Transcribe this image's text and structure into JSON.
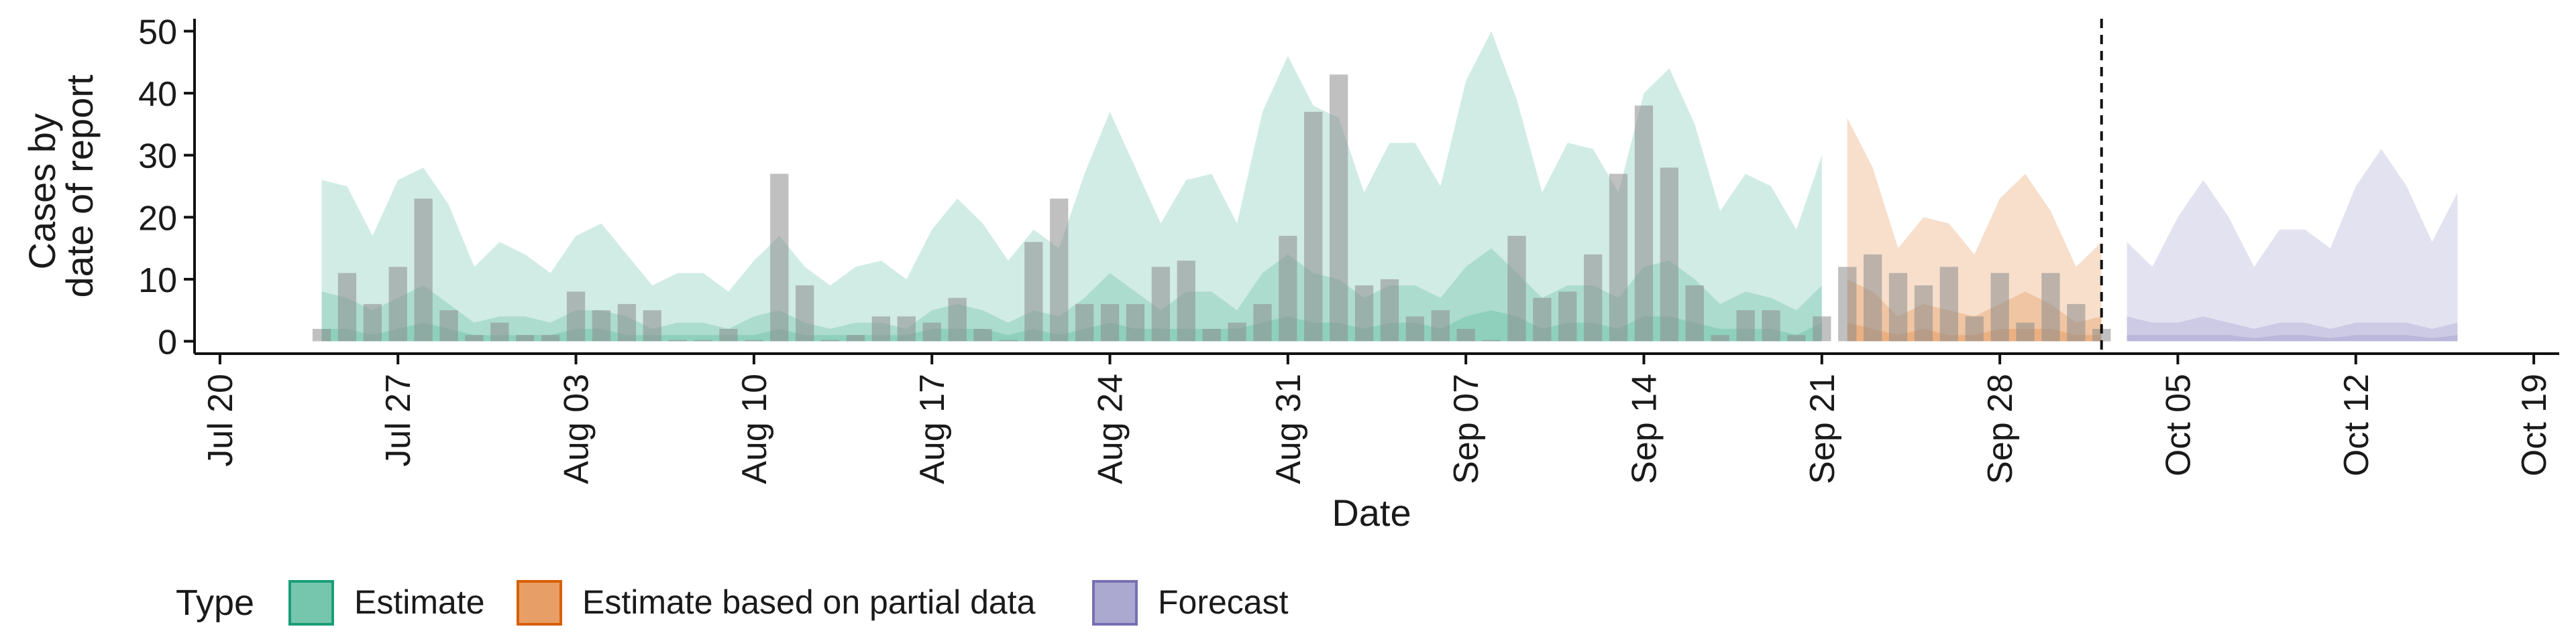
{
  "chart_data": {
    "type": "area",
    "xlabel": "Date",
    "ylabel_lines": [
      "Cases by",
      "date of report"
    ],
    "x_axis": {
      "type": "date",
      "range": [
        "2020-07-19",
        "2020-10-20"
      ],
      "ticks": [
        "2020-07-20",
        "2020-07-27",
        "2020-08-03",
        "2020-08-10",
        "2020-08-17",
        "2020-08-24",
        "2020-08-31",
        "2020-09-07",
        "2020-09-14",
        "2020-09-21",
        "2020-09-28",
        "2020-10-05",
        "2020-10-12",
        "2020-10-19"
      ],
      "tick_labels": [
        "Jul 20",
        "Jul 27",
        "Aug 03",
        "Aug 10",
        "Aug 17",
        "Aug 24",
        "Aug 31",
        "Sep 07",
        "Sep 14",
        "Sep 21",
        "Sep 28",
        "Oct 05",
        "Oct 12",
        "Oct 19"
      ]
    },
    "y_axis": {
      "ylim": [
        -2,
        52
      ],
      "ticks": [
        0,
        10,
        20,
        30,
        40,
        50
      ],
      "tick_labels": [
        "0",
        "10",
        "20",
        "30",
        "40",
        "50"
      ]
    },
    "grid": false,
    "vline_date": "2020-10-02",
    "observed_cases": {
      "dates": [
        "2020-07-24",
        "2020-07-25",
        "2020-07-26",
        "2020-07-27",
        "2020-07-28",
        "2020-07-29",
        "2020-07-30",
        "2020-07-31",
        "2020-08-01",
        "2020-08-02",
        "2020-08-03",
        "2020-08-04",
        "2020-08-05",
        "2020-08-06",
        "2020-08-07",
        "2020-08-08",
        "2020-08-09",
        "2020-08-10",
        "2020-08-11",
        "2020-08-12",
        "2020-08-13",
        "2020-08-14",
        "2020-08-15",
        "2020-08-16",
        "2020-08-17",
        "2020-08-18",
        "2020-08-19",
        "2020-08-20",
        "2020-08-21",
        "2020-08-22",
        "2020-08-23",
        "2020-08-24",
        "2020-08-25",
        "2020-08-26",
        "2020-08-27",
        "2020-08-28",
        "2020-08-29",
        "2020-08-30",
        "2020-08-31",
        "2020-09-01",
        "2020-09-02",
        "2020-09-03",
        "2020-09-04",
        "2020-09-05",
        "2020-09-06",
        "2020-09-07",
        "2020-09-08",
        "2020-09-09",
        "2020-09-10",
        "2020-09-11",
        "2020-09-12",
        "2020-09-13",
        "2020-09-14",
        "2020-09-15",
        "2020-09-16",
        "2020-09-17",
        "2020-09-18",
        "2020-09-19",
        "2020-09-20",
        "2020-09-21",
        "2020-09-22",
        "2020-09-23",
        "2020-09-24",
        "2020-09-25",
        "2020-09-26",
        "2020-09-27",
        "2020-09-28",
        "2020-09-29",
        "2020-09-30",
        "2020-10-01",
        "2020-10-02"
      ],
      "values": [
        2,
        11,
        6,
        12,
        23,
        5,
        1,
        3,
        1,
        1,
        8,
        5,
        6,
        5,
        0,
        0,
        2,
        0,
        27,
        9,
        0,
        1,
        4,
        4,
        3,
        7,
        2,
        0,
        16,
        23,
        6,
        6,
        6,
        12,
        13,
        2,
        3,
        6,
        17,
        37,
        43,
        9,
        10,
        4,
        5,
        2,
        0,
        17,
        7,
        8,
        14,
        27,
        38,
        28,
        9,
        1,
        5,
        5,
        1,
        4,
        12,
        14,
        11,
        9,
        12,
        4,
        11,
        3,
        11,
        6,
        2
      ]
    },
    "series": [
      {
        "name": "Estimate",
        "color": "#1b9e77",
        "dates": [
          "2020-07-24",
          "2020-07-25",
          "2020-07-26",
          "2020-07-27",
          "2020-07-28",
          "2020-07-29",
          "2020-07-30",
          "2020-07-31",
          "2020-08-01",
          "2020-08-02",
          "2020-08-03",
          "2020-08-04",
          "2020-08-05",
          "2020-08-06",
          "2020-08-07",
          "2020-08-08",
          "2020-08-09",
          "2020-08-10",
          "2020-08-11",
          "2020-08-12",
          "2020-08-13",
          "2020-08-14",
          "2020-08-15",
          "2020-08-16",
          "2020-08-17",
          "2020-08-18",
          "2020-08-19",
          "2020-08-20",
          "2020-08-21",
          "2020-08-22",
          "2020-08-23",
          "2020-08-24",
          "2020-08-25",
          "2020-08-26",
          "2020-08-27",
          "2020-08-28",
          "2020-08-29",
          "2020-08-30",
          "2020-08-31",
          "2020-09-01",
          "2020-09-02",
          "2020-09-03",
          "2020-09-04",
          "2020-09-05",
          "2020-09-06",
          "2020-09-07",
          "2020-09-08",
          "2020-09-09",
          "2020-09-10",
          "2020-09-11",
          "2020-09-12",
          "2020-09-13",
          "2020-09-14",
          "2020-09-15",
          "2020-09-16",
          "2020-09-17",
          "2020-09-18",
          "2020-09-19",
          "2020-09-20",
          "2020-09-21"
        ],
        "upper90": [
          26,
          25,
          17,
          26,
          28,
          22,
          12,
          16,
          14,
          11,
          17,
          19,
          14,
          9,
          11,
          11,
          8,
          13,
          17,
          12,
          9,
          12,
          13,
          10,
          18,
          23,
          19,
          13,
          18,
          15,
          27,
          37,
          28,
          19,
          26,
          27,
          19,
          37,
          46,
          38,
          36,
          24,
          32,
          32,
          25,
          42,
          50,
          39,
          24,
          32,
          31,
          24,
          40,
          44,
          35,
          21,
          27,
          25,
          18,
          30
        ],
        "upper50": [
          8,
          7,
          5,
          7,
          9,
          6,
          3,
          4,
          4,
          3,
          5,
          5,
          4,
          2,
          3,
          3,
          2,
          4,
          5,
          3,
          2,
          3,
          3,
          2,
          5,
          6,
          5,
          3,
          5,
          4,
          7,
          11,
          8,
          5,
          8,
          8,
          5,
          11,
          14,
          11,
          10,
          7,
          9,
          9,
          7,
          12,
          15,
          11,
          7,
          9,
          9,
          7,
          12,
          13,
          10,
          6,
          8,
          7,
          5,
          9
        ],
        "upper20": [
          2,
          2,
          1,
          2,
          3,
          2,
          1,
          1,
          1,
          1,
          2,
          2,
          1,
          1,
          1,
          1,
          1,
          1,
          2,
          1,
          1,
          1,
          1,
          1,
          2,
          2,
          2,
          1,
          2,
          1,
          2,
          3,
          2,
          2,
          2,
          2,
          2,
          3,
          4,
          3,
          3,
          2,
          3,
          3,
          2,
          4,
          5,
          4,
          2,
          3,
          3,
          2,
          4,
          4,
          3,
          2,
          2,
          2,
          1,
          3
        ]
      },
      {
        "name": "Estimate based on partial data",
        "color": "#d95f02",
        "dates": [
          "2020-09-22",
          "2020-09-23",
          "2020-09-24",
          "2020-09-25",
          "2020-09-26",
          "2020-09-27",
          "2020-09-28",
          "2020-09-29",
          "2020-09-30",
          "2020-10-01",
          "2020-10-02"
        ],
        "upper90": [
          36,
          28,
          15,
          20,
          19,
          14,
          23,
          27,
          21,
          12,
          16
        ],
        "upper50": [
          10,
          8,
          4,
          6,
          5,
          4,
          6,
          8,
          6,
          3,
          4
        ],
        "upper20": [
          3,
          2,
          1,
          2,
          1,
          1,
          2,
          2,
          2,
          1,
          1
        ]
      },
      {
        "name": "Forecast",
        "color": "#7570b3",
        "dates": [
          "2020-10-03",
          "2020-10-04",
          "2020-10-05",
          "2020-10-06",
          "2020-10-07",
          "2020-10-08",
          "2020-10-09",
          "2020-10-10",
          "2020-10-11",
          "2020-10-12",
          "2020-10-13",
          "2020-10-14",
          "2020-10-15",
          "2020-10-16"
        ],
        "upper90": [
          16,
          12,
          20,
          26,
          20,
          12,
          18,
          18,
          15,
          25,
          31,
          25,
          16,
          24
        ],
        "upper50": [
          4,
          3,
          3,
          4,
          3,
          2,
          3,
          3,
          2,
          3,
          3,
          3,
          2,
          3
        ],
        "upper20": [
          1,
          1,
          1,
          1,
          1,
          0.5,
          1,
          1,
          0.5,
          1,
          1,
          1,
          0.5,
          1
        ]
      }
    ],
    "legend": {
      "title": "Type",
      "position": "bottom",
      "entries": [
        "Estimate",
        "Estimate based on partial data",
        "Forecast"
      ]
    }
  }
}
